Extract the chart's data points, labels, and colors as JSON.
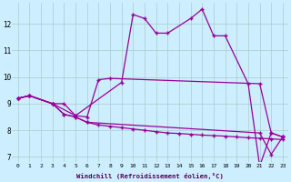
{
  "xlabel": "Windchill (Refroidissement éolien,°C)",
  "background_color": "#cceeff",
  "grid_color": "#aacccc",
  "line_color": "#990099",
  "xlim": [
    -0.5,
    23.5
  ],
  "ylim": [
    6.8,
    12.8
  ],
  "yticks": [
    7,
    8,
    9,
    10,
    11,
    12
  ],
  "xticks": [
    0,
    1,
    2,
    3,
    4,
    5,
    6,
    7,
    8,
    9,
    10,
    11,
    12,
    13,
    14,
    15,
    16,
    17,
    18,
    19,
    20,
    21,
    22,
    23
  ],
  "series1": [
    [
      0,
      9.2
    ],
    [
      1,
      9.3
    ],
    [
      3,
      9.0
    ],
    [
      4,
      8.6
    ],
    [
      5,
      8.5
    ],
    [
      6,
      8.3
    ],
    [
      21,
      7.9
    ],
    [
      22,
      7.1
    ],
    [
      23,
      7.75
    ]
  ],
  "series2": [
    [
      0,
      9.2
    ],
    [
      1,
      9.3
    ],
    [
      3,
      9.0
    ],
    [
      4,
      8.6
    ],
    [
      5,
      8.5
    ],
    [
      6,
      8.3
    ],
    [
      7,
      8.2
    ],
    [
      8,
      8.15
    ],
    [
      9,
      8.1
    ],
    [
      10,
      8.05
    ],
    [
      11,
      8.0
    ],
    [
      12,
      7.95
    ],
    [
      13,
      7.9
    ],
    [
      14,
      7.88
    ],
    [
      15,
      7.85
    ],
    [
      16,
      7.82
    ],
    [
      17,
      7.8
    ],
    [
      18,
      7.78
    ],
    [
      19,
      7.75
    ],
    [
      20,
      7.72
    ],
    [
      21,
      7.7
    ],
    [
      22,
      7.68
    ],
    [
      23,
      7.65
    ]
  ],
  "series3": [
    [
      0,
      9.2
    ],
    [
      1,
      9.3
    ],
    [
      3,
      9.0
    ],
    [
      4,
      9.0
    ],
    [
      5,
      8.55
    ],
    [
      6,
      8.5
    ],
    [
      7,
      9.9
    ],
    [
      8,
      9.95
    ],
    [
      21,
      9.75
    ],
    [
      22,
      7.9
    ],
    [
      23,
      7.75
    ]
  ],
  "series4": [
    [
      0,
      9.2
    ],
    [
      1,
      9.3
    ],
    [
      3,
      9.0
    ],
    [
      5,
      8.55
    ],
    [
      9,
      9.8
    ],
    [
      10,
      12.35
    ],
    [
      11,
      12.2
    ],
    [
      12,
      11.65
    ],
    [
      13,
      11.65
    ],
    [
      15,
      12.2
    ],
    [
      16,
      12.55
    ],
    [
      17,
      11.55
    ],
    [
      18,
      11.55
    ],
    [
      20,
      9.75
    ],
    [
      21,
      6.65
    ],
    [
      22,
      7.9
    ],
    [
      23,
      7.75
    ]
  ]
}
